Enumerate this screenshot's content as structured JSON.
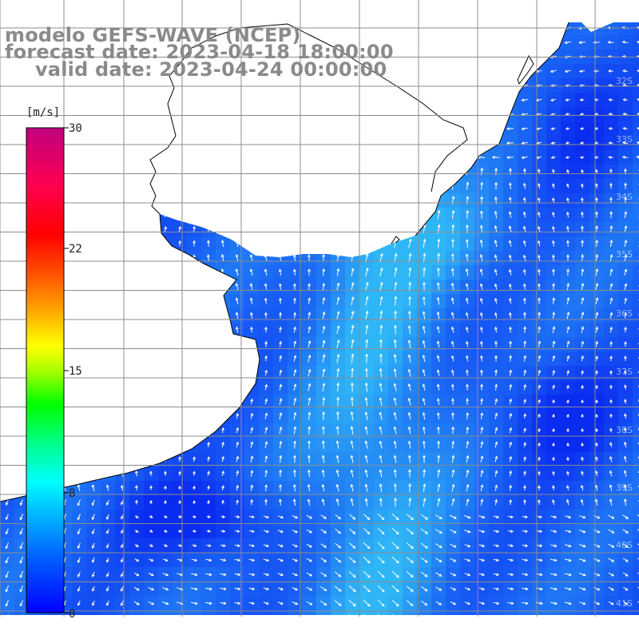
{
  "title": {
    "line1": "modelo GEFS-WAVE (NCEP)",
    "line2": "forecast date: 2023-04-18 18:00:00",
    "line3": "valid date: 2023-04-24 00:00:00"
  },
  "colorbar": {
    "unit": "[m/s]",
    "max": "30",
    "tick_22": "22",
    "tick_15": "15",
    "tick_8": "8",
    "min": "0",
    "colors": [
      "#0000ff",
      "#0066ff",
      "#00bfff",
      "#00ffff",
      "#00ff7f",
      "#00ff00",
      "#aaff00",
      "#ffff00",
      "#ffaa00",
      "#ff5500",
      "#ff0000",
      "#ff0044",
      "#e0006a",
      "#c0007f"
    ]
  },
  "lat_labels": [
    "32S",
    "33S",
    "34S",
    "35S",
    "36S",
    "37S",
    "38S",
    "39S",
    "40S",
    "41S"
  ],
  "map": {
    "land_color": "#ffffff",
    "ocean_dark": "#0a2bf0",
    "ocean_mid": "#1a66f5",
    "ocean_light": "#2fb6f6",
    "grid_color": "#8c8c8c",
    "arrow_color": "#ffffff"
  }
}
